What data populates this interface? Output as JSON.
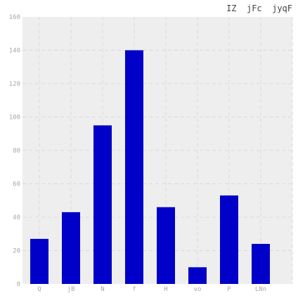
{
  "chart_data": {
    "type": "bar",
    "title": "IZ  jFc  jyqF",
    "xlabel": "",
    "ylabel": "",
    "categories": [
      "Q",
      "jB",
      "N",
      "f",
      "H",
      "vo",
      "P",
      "LNn"
    ],
    "values": [
      27,
      43,
      95,
      140,
      46,
      10,
      53,
      24
    ],
    "ylim": [
      0,
      160
    ],
    "yticks": [
      0,
      20,
      40,
      60,
      80,
      100,
      120,
      140,
      160
    ],
    "grid": true,
    "bar_color": "#0000c8",
    "plot_background": "#eeeeee"
  }
}
